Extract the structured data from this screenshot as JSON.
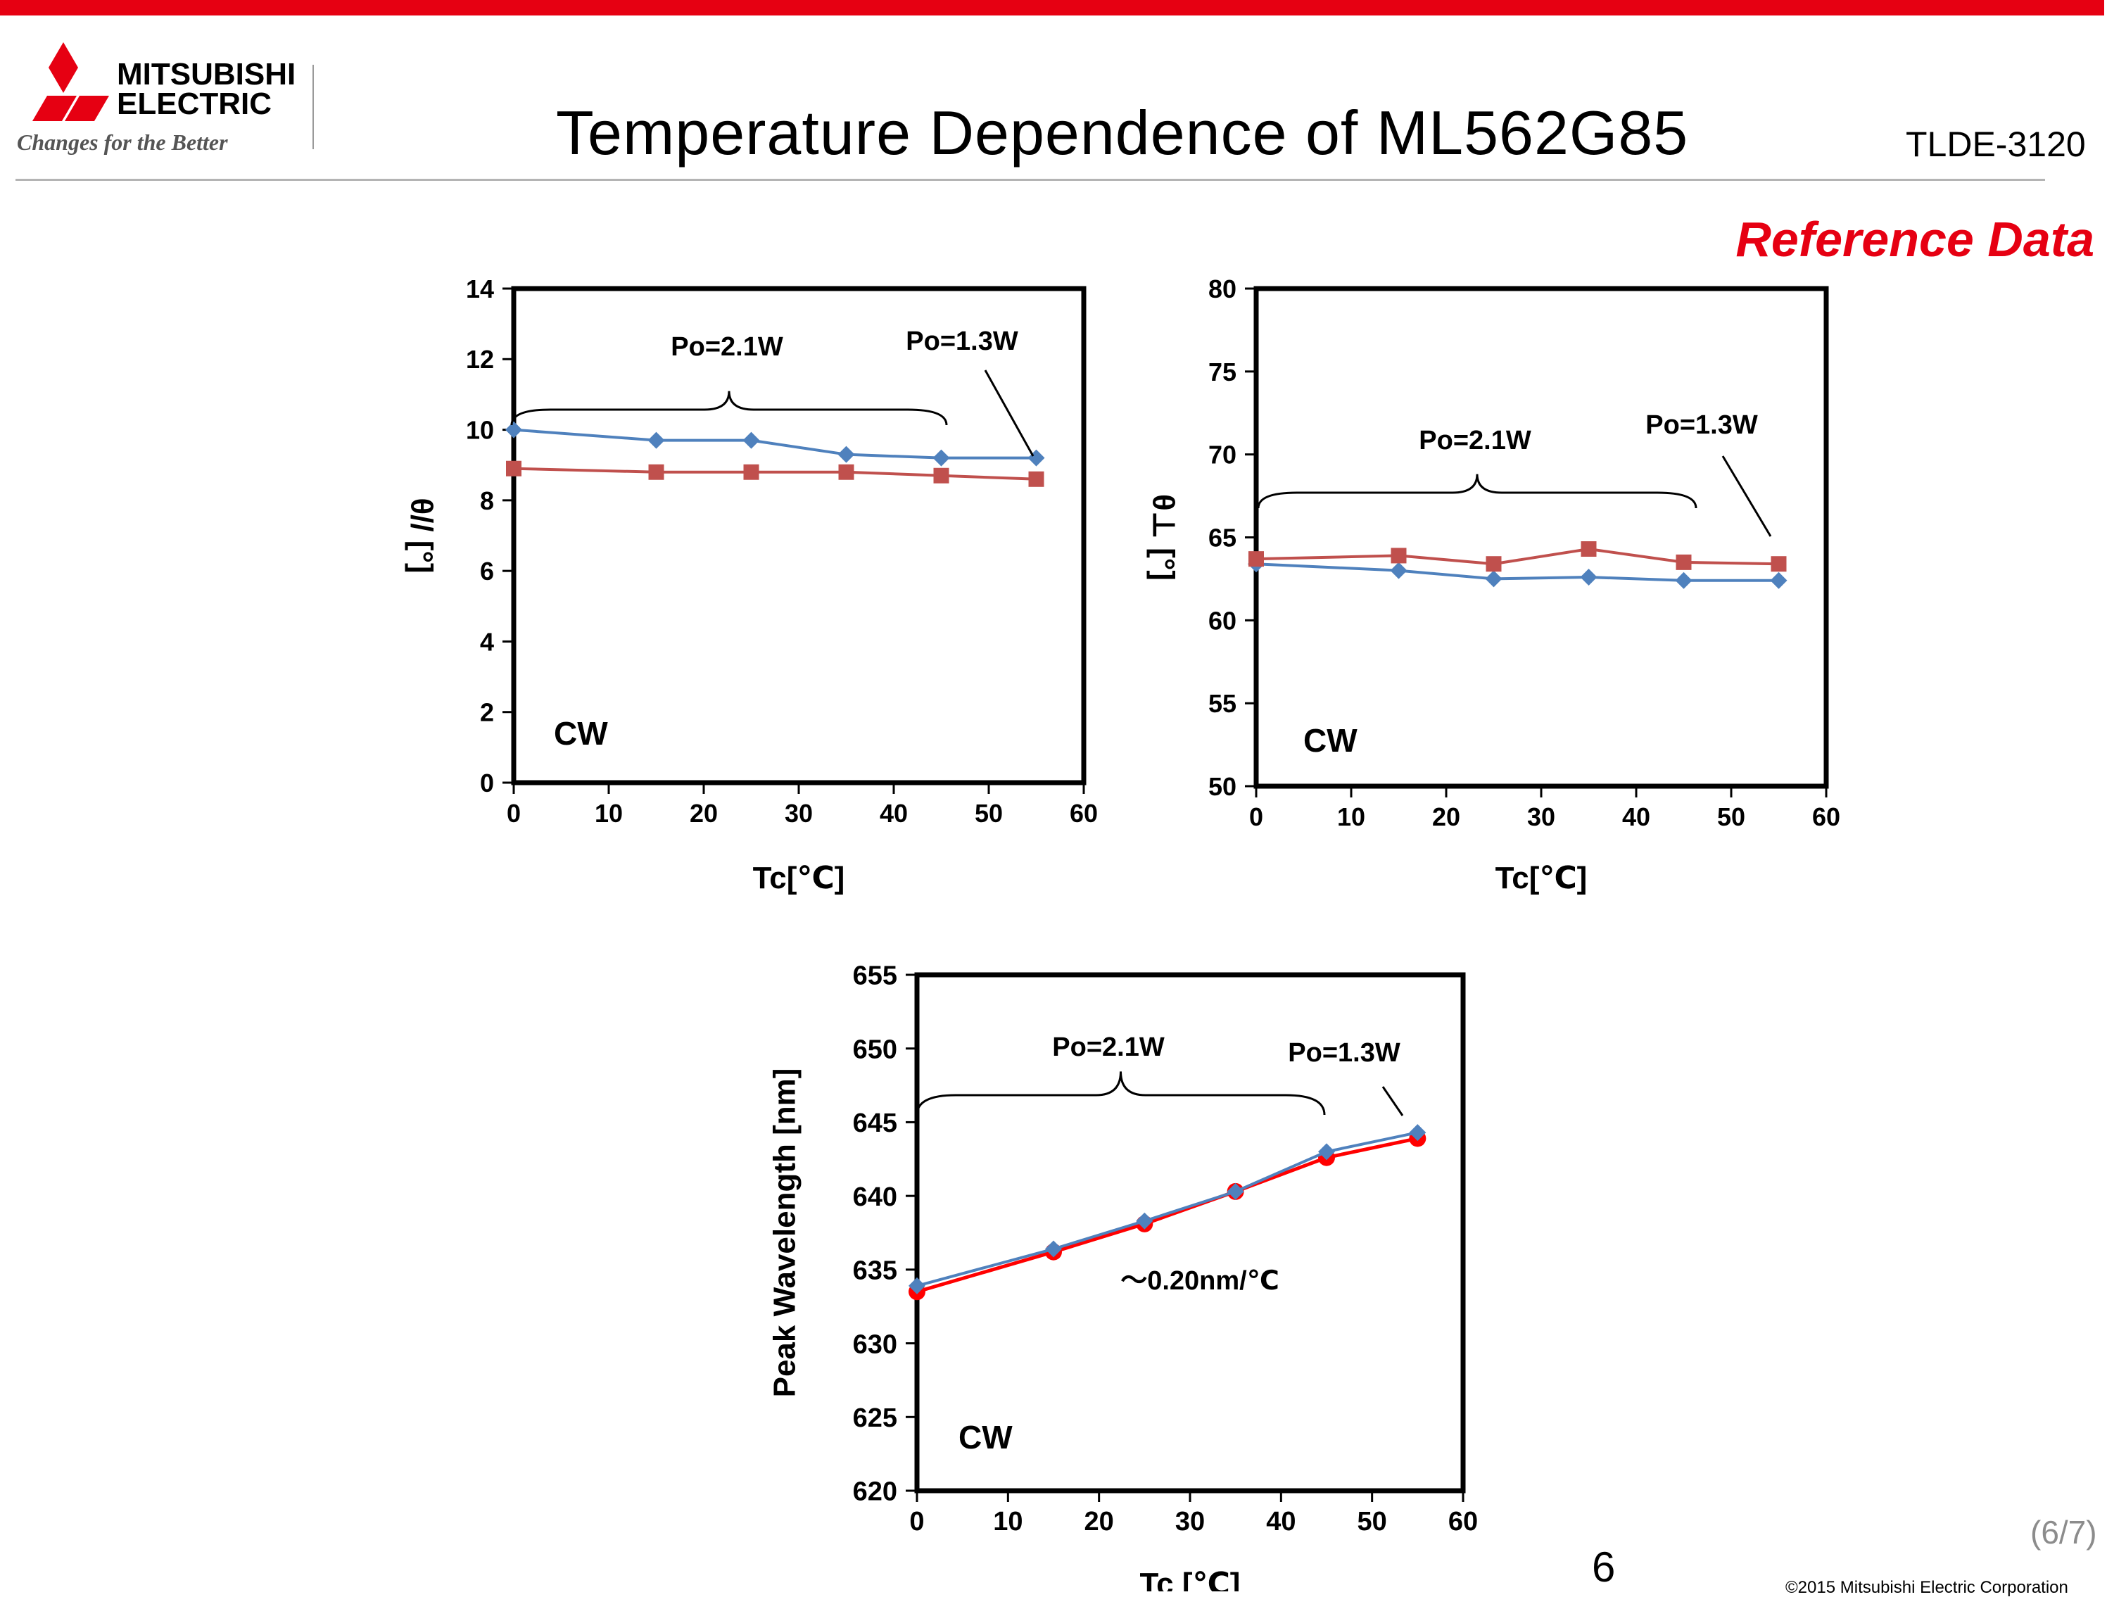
{
  "header": {
    "logo": {
      "line1": "MITSUBISHI",
      "line2": "ELECTRIC",
      "tagline": "Changes for the Better"
    },
    "title": "Temperature Dependence of ML562G85",
    "doc_code": "TLDE-3120",
    "reference_label": "Reference Data"
  },
  "colors": {
    "accent_red": "#e60012",
    "series_blue": "#4f81bd",
    "series_red": "#c0504d",
    "series_bright_red": "#ff0000"
  },
  "chart_data": [
    {
      "type": "line",
      "id": "theta-parallel",
      "xlabel": "Tc[℃]",
      "ylabel": "θ// [°]",
      "xlim": [
        0,
        60
      ],
      "ylim": [
        0,
        14
      ],
      "xticks": [
        "0",
        "10",
        "20",
        "30",
        "40",
        "50",
        "60"
      ],
      "yticks": [
        "0",
        "2",
        "4",
        "6",
        "8",
        "10",
        "12",
        "14"
      ],
      "x": [
        0,
        15,
        25,
        35,
        45,
        55
      ],
      "series": [
        {
          "name": "series-blue",
          "marker": "diamond",
          "color": "#4f81bd",
          "values": [
            10.0,
            9.7,
            9.7,
            9.3,
            9.2,
            9.2
          ]
        },
        {
          "name": "series-red",
          "marker": "square",
          "color": "#c0504d",
          "values": [
            8.9,
            8.8,
            8.8,
            8.8,
            8.7,
            8.6
          ]
        }
      ],
      "mode_label": "CW",
      "annotations": {
        "po_high": "Po=2.1W",
        "po_low": "Po=1.3W"
      }
    },
    {
      "type": "line",
      "id": "theta-perpendicular",
      "xlabel": "Tc[℃]",
      "ylabel": "θ⊥ [°]",
      "xlim": [
        0,
        60
      ],
      "ylim": [
        50,
        80
      ],
      "xticks": [
        "0",
        "10",
        "20",
        "30",
        "40",
        "50",
        "60"
      ],
      "yticks": [
        "50",
        "55",
        "60",
        "65",
        "70",
        "75",
        "80"
      ],
      "x": [
        0,
        15,
        25,
        35,
        45,
        55
      ],
      "series": [
        {
          "name": "series-blue",
          "marker": "diamond",
          "color": "#4f81bd",
          "values": [
            63.4,
            63.0,
            62.5,
            62.6,
            62.4,
            62.4
          ]
        },
        {
          "name": "series-red",
          "marker": "square",
          "color": "#c0504d",
          "values": [
            63.7,
            63.9,
            63.4,
            64.3,
            63.5,
            63.4
          ]
        }
      ],
      "mode_label": "CW",
      "annotations": {
        "po_high": "Po=2.1W",
        "po_low": "Po=1.3W"
      }
    },
    {
      "type": "line",
      "id": "peak-wavelength",
      "xlabel": "Tc [℃]",
      "ylabel": "Peak Wavelength [nm]",
      "xlim": [
        0,
        60
      ],
      "ylim": [
        620,
        655
      ],
      "xticks": [
        "0",
        "10",
        "20",
        "30",
        "40",
        "50",
        "60"
      ],
      "yticks": [
        "620",
        "625",
        "630",
        "635",
        "640",
        "645",
        "650",
        "655"
      ],
      "x": [
        0,
        15,
        25,
        35,
        45,
        55
      ],
      "series": [
        {
          "name": "series-red",
          "marker": "circle",
          "color": "#ff0000",
          "values": [
            633.5,
            636.2,
            638.1,
            640.3,
            642.6,
            643.9
          ]
        },
        {
          "name": "series-blue",
          "marker": "diamond",
          "color": "#4f81bd",
          "values": [
            633.9,
            636.4,
            638.3,
            640.3,
            643.0,
            644.3
          ]
        }
      ],
      "mode_label": "CW",
      "slope_label": "～0.20nm/℃",
      "annotations": {
        "po_high": "Po=2.1W",
        "po_low": "Po=1.3W"
      }
    }
  ],
  "footer": {
    "page_number": "6",
    "page_progress": "(6/7)",
    "copyright": "©2015 Mitsubishi Electric Corporation"
  }
}
